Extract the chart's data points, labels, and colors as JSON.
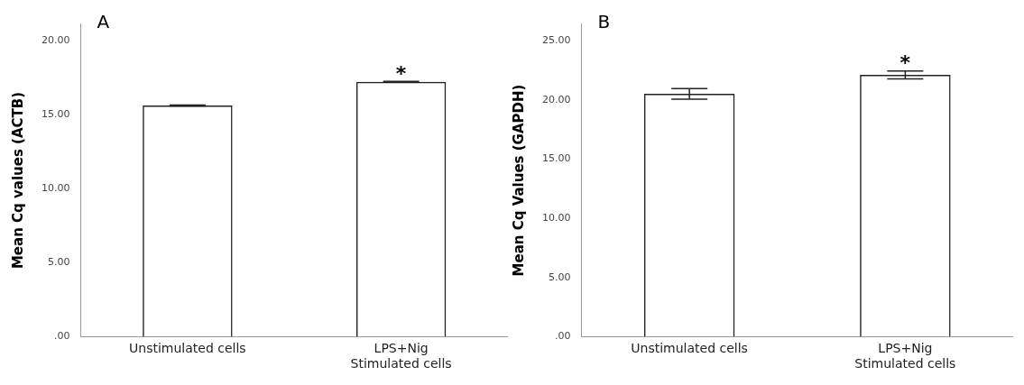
{
  "chart_data": [
    {
      "type": "bar",
      "title": "A",
      "ylabel": "Mean Cq values (ACTB)",
      "categories": [
        "Unstimulated cells",
        "LPS+Nig\nStimulated cells"
      ],
      "values": [
        15.6,
        17.2
      ],
      "errors": [
        0.03,
        0.03
      ],
      "color": "#222222",
      "ylim": [
        0,
        21.1
      ],
      "yticks": [
        {
          "value": 0,
          "label": ".00"
        },
        {
          "value": 5,
          "label": "5.00"
        },
        {
          "value": 10,
          "label": "10.00"
        },
        {
          "value": 15,
          "label": "15.00"
        },
        {
          "value": 20,
          "label": "20.00"
        }
      ],
      "grid": false,
      "annotations": [
        {
          "text": "*",
          "x": "LPS+Nig\nStimulated cells",
          "y": 17.2
        }
      ]
    },
    {
      "type": "bar",
      "title": "B",
      "ylabel": "Mean Cq Values (GAPDH)",
      "categories": [
        "Unstimulated cells",
        "LPS+Nig\nStimulated cells"
      ],
      "values": [
        20.5,
        22.1
      ],
      "errors": [
        0.45,
        0.33
      ],
      "color": "#222222",
      "ylim": [
        0,
        26.4
      ],
      "yticks": [
        {
          "value": 0,
          "label": ".00"
        },
        {
          "value": 5,
          "label": "5.00"
        },
        {
          "value": 10,
          "label": "10.00"
        },
        {
          "value": 15,
          "label": "15.00"
        },
        {
          "value": 20,
          "label": "20.00"
        },
        {
          "value": 25,
          "label": "25.00"
        }
      ],
      "grid": false,
      "annotations": [
        {
          "text": "*",
          "x": "LPS+Nig\nStimulated cells",
          "y": 22.1
        }
      ]
    }
  ]
}
